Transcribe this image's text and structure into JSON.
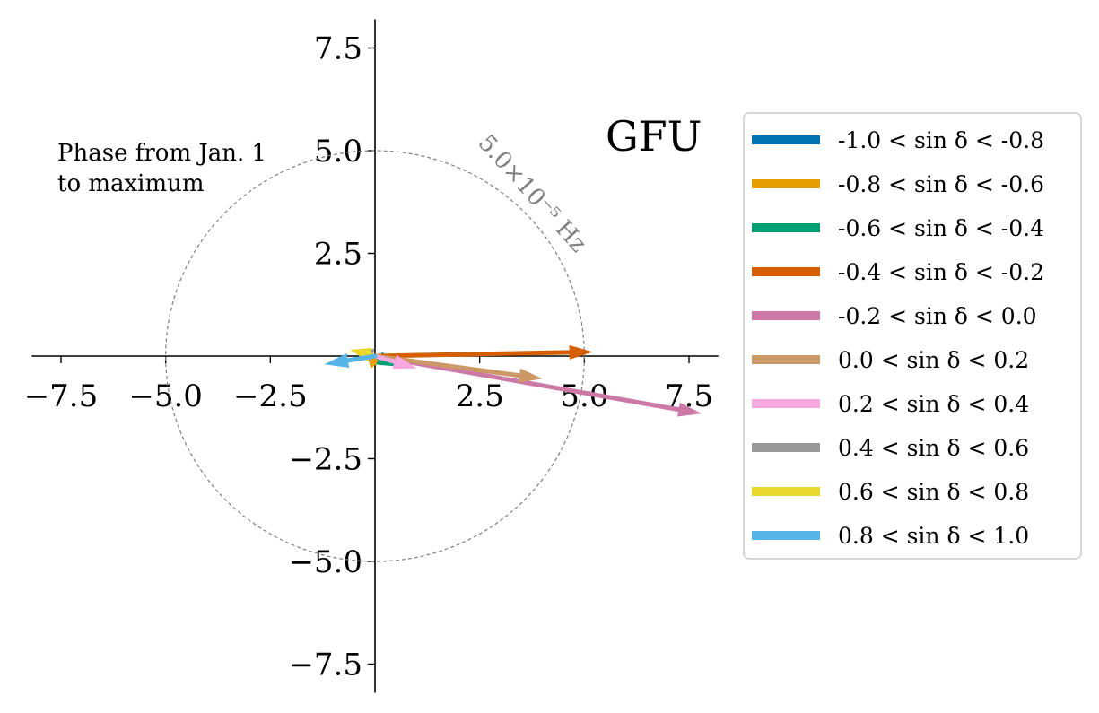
{
  "chart_data": {
    "type": "vector",
    "panel_label": "GFU",
    "annotation": [
      "Phase from Jan. 1",
      "to maximum"
    ],
    "circle": {
      "radius": 5.0,
      "label": "5.0×10⁻⁵ Hz",
      "color": "#808080",
      "style": "dashed"
    },
    "xlim": [
      -8.2,
      8.2
    ],
    "ylim": [
      -8.2,
      8.2
    ],
    "x_ticks": [
      -7.5,
      -5.0,
      -2.5,
      2.5,
      5.0,
      7.5
    ],
    "x_tick_labels": [
      "−7.5",
      "−5.0",
      "−2.5",
      "2.5",
      "5.0",
      "7.5"
    ],
    "y_ticks": [
      7.5,
      5.0,
      2.5,
      -2.5,
      -5.0,
      -7.5
    ],
    "y_tick_labels": [
      "7.5",
      "5.0",
      "2.5",
      "−2.5",
      "−5.0",
      "−7.5"
    ],
    "grid": false,
    "legend_position": "right",
    "series": [
      {
        "name": "-1.0 < sin δ < -0.8",
        "color": "#0072B2",
        "dx": -1.2,
        "dy": -0.2
      },
      {
        "name": "-0.8 < sin δ < -0.6",
        "color": "#E69F00",
        "dx": -0.1,
        "dy": -0.3
      },
      {
        "name": "-0.6 < sin δ < -0.4",
        "color": "#009E73",
        "dx": 0.5,
        "dy": -0.25
      },
      {
        "name": "-0.4 < sin δ < -0.2",
        "color": "#D55E00",
        "dx": 5.2,
        "dy": 0.1
      },
      {
        "name": "-0.2 < sin δ < 0.0",
        "color": "#CC79A7",
        "dx": 7.8,
        "dy": -1.4
      },
      {
        "name": "0.0 < sin δ < 0.2",
        "color": "#CC9966",
        "dx": 4.0,
        "dy": -0.55
      },
      {
        "name": "0.2 < sin δ < 0.4",
        "color": "#F7A8E0",
        "dx": 1.0,
        "dy": -0.3
      },
      {
        "name": "0.4 < sin δ < 0.6",
        "color": "#999999",
        "dx": -0.3,
        "dy": 0.1
      },
      {
        "name": "0.6 < sin δ < 0.8",
        "color": "#E8D82B",
        "dx": -0.6,
        "dy": 0.15
      },
      {
        "name": "0.8 < sin δ < 1.0",
        "color": "#56B4E9",
        "dx": -1.2,
        "dy": -0.2
      }
    ]
  }
}
